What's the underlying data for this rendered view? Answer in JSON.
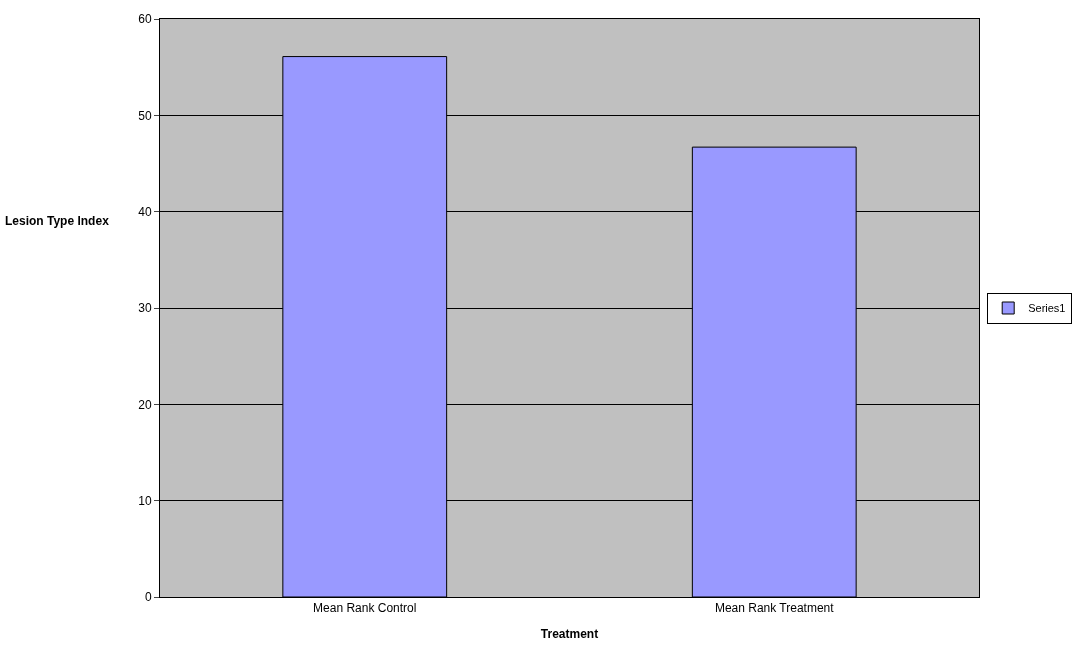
{
  "chart_data": {
    "type": "bar",
    "xlabel": "Treatment",
    "ylabel": "Lesion Type Index",
    "categories": [
      "Mean Rank Control",
      "Mean Rank Treatment"
    ],
    "series": [
      {
        "name": "Series1",
        "color": "#9999ff",
        "values": [
          56.1,
          46.7
        ]
      }
    ],
    "ylim": [
      0,
      60
    ],
    "yticks": [
      0,
      10,
      20,
      30,
      40,
      50,
      60
    ],
    "grid": "y",
    "legend": "right"
  }
}
